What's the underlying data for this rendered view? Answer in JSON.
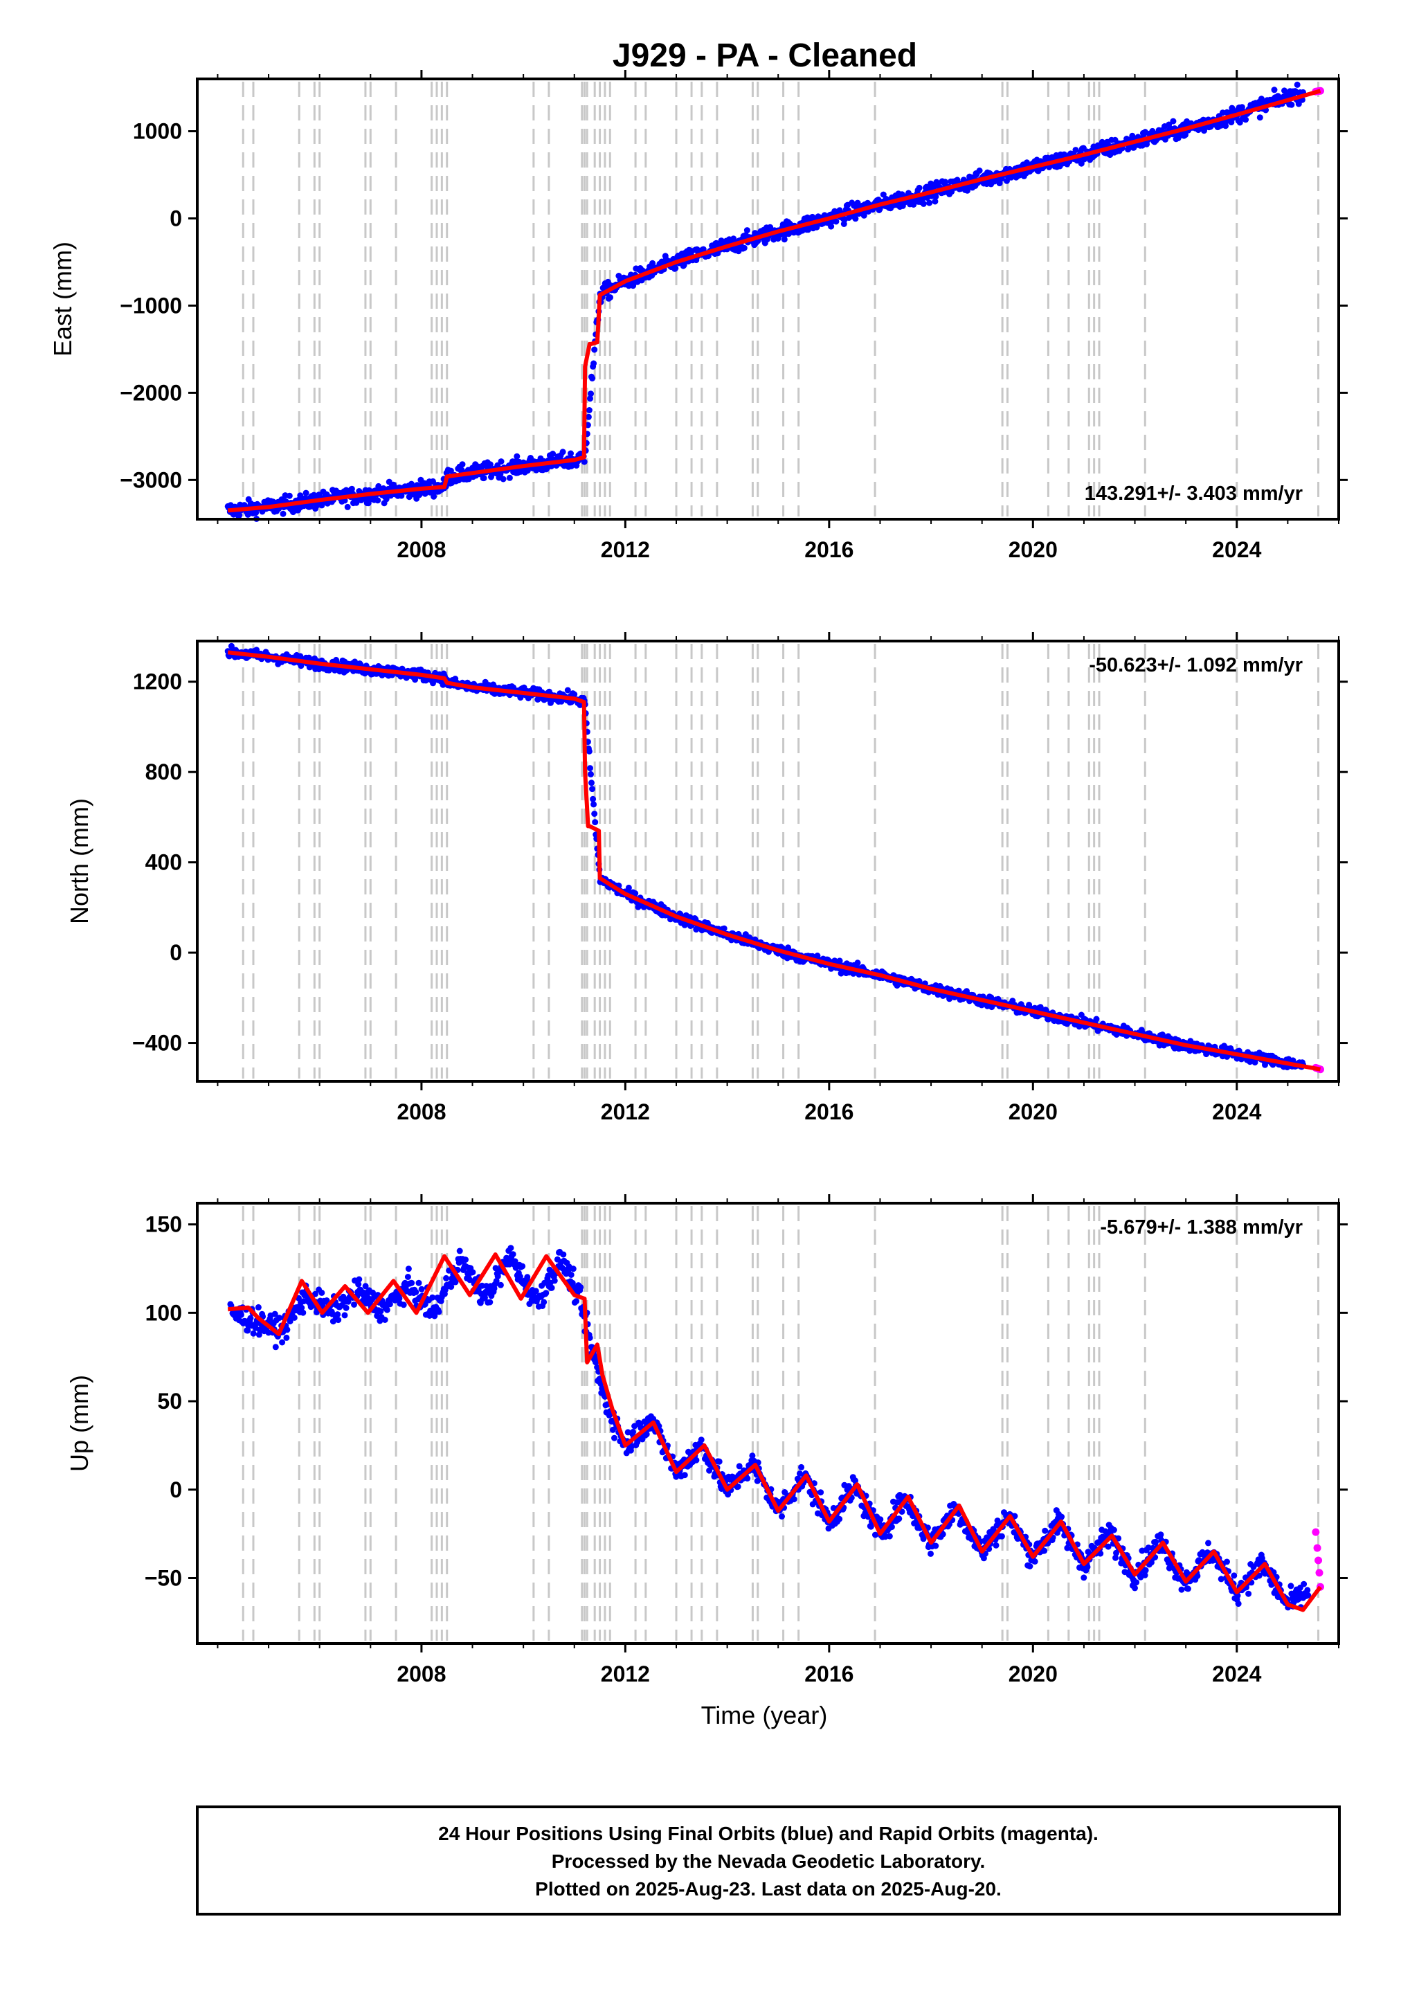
{
  "title": "J929  - PA - Cleaned",
  "xlabel": "Time (year)",
  "footer": {
    "line1": "24 Hour Positions Using Final Orbits (blue) and Rapid Orbits (magenta).",
    "line2": "Processed by the Nevada Geodetic Laboratory.",
    "line3": "Plotted on 2025-Aug-23. Last data on 2025-Aug-20."
  },
  "colors": {
    "final_orbits": "#0000ff",
    "rapid_orbits": "#ff00ff",
    "model_fit": "#ff0000",
    "event_lines": "#c8c8c8"
  },
  "chart_data": [
    {
      "type": "scatter",
      "ylabel": "East (mm)",
      "rate_text": "143.291+/- 3.403 mm/yr",
      "xlim": [
        2003.6,
        2026.0
      ],
      "ylim": [
        -3450,
        1600
      ],
      "xticks": [
        2008,
        2012,
        2016,
        2020,
        2024
      ],
      "yticks": [
        1000,
        0,
        -1000,
        -2000,
        -3000
      ],
      "ytick_labels": [
        "1000",
        "0",
        "−1000",
        "−2000",
        "−3000"
      ],
      "series": [
        {
          "name": "final orbits",
          "x": [
            2004.2,
            2005.0,
            2006.0,
            2007.0,
            2008.0,
            2008.45,
            2008.5,
            2009.0,
            2010.0,
            2011.0,
            2011.2,
            2011.5,
            2012.0,
            2013.0,
            2014.0,
            2015.0,
            2016.0,
            2017.0,
            2018.0,
            2019.0,
            2020.0,
            2021.0,
            2022.0,
            2023.0,
            2024.0,
            2025.3
          ],
          "values": [
            -3350,
            -3310,
            -3230,
            -3160,
            -3100,
            -3080,
            -2960,
            -2920,
            -2840,
            -2770,
            -2740,
            -880,
            -720,
            -500,
            -320,
            -150,
            0,
            160,
            300,
            450,
            590,
            730,
            880,
            1030,
            1190,
            1450
          ]
        },
        {
          "name": "rapid orbits",
          "x": [
            2025.55,
            2025.58,
            2025.61,
            2025.64
          ],
          "values": [
            1455,
            1458,
            1461,
            1463
          ]
        }
      ],
      "model": {
        "x": [
          2004.2,
          2005.0,
          2006.0,
          2007.0,
          2008.0,
          2008.45,
          2008.5,
          2009.0,
          2010.0,
          2011.0,
          2011.19,
          2011.21,
          2011.3,
          2011.33,
          2011.45,
          2011.5,
          2012.0,
          2013.0,
          2014.0,
          2015.0,
          2016.0,
          2017.0,
          2018.0,
          2019.0,
          2020.0,
          2021.0,
          2022.0,
          2023.0,
          2024.0,
          2025.64
        ],
        "values": [
          -3350,
          -3310,
          -3230,
          -3160,
          -3100,
          -3080,
          -2960,
          -2920,
          -2840,
          -2770,
          -2740,
          -1700,
          -1440,
          -1440,
          -1420,
          -880,
          -720,
          -500,
          -320,
          -150,
          0,
          160,
          300,
          450,
          590,
          730,
          880,
          1030,
          1190,
          1463
        ]
      }
    },
    {
      "type": "scatter",
      "ylabel": "North (mm)",
      "rate_text": "-50.623+/- 1.092 mm/yr",
      "xlim": [
        2003.6,
        2026.0
      ],
      "ylim": [
        -570,
        1380
      ],
      "xticks": [
        2008,
        2012,
        2016,
        2020,
        2024
      ],
      "yticks": [
        1200,
        800,
        400,
        0,
        -400
      ],
      "ytick_labels": [
        "1200",
        "800",
        "400",
        "0",
        "−400"
      ],
      "series": [
        {
          "name": "final orbits",
          "x": [
            2004.2,
            2005.0,
            2006.0,
            2007.0,
            2008.0,
            2008.45,
            2008.5,
            2009.0,
            2010.0,
            2011.0,
            2011.2,
            2011.5,
            2012.0,
            2013.0,
            2014.0,
            2015.0,
            2016.0,
            2017.0,
            2018.0,
            2019.0,
            2020.0,
            2021.0,
            2022.0,
            2023.0,
            2024.0,
            2025.3
          ],
          "values": [
            1330,
            1310,
            1280,
            1255,
            1230,
            1215,
            1195,
            1175,
            1150,
            1125,
            1110,
            330,
            260,
            160,
            80,
            10,
            -50,
            -100,
            -160,
            -210,
            -260,
            -310,
            -360,
            -410,
            -450,
            -500
          ]
        },
        {
          "name": "rapid orbits",
          "x": [
            2025.55,
            2025.58,
            2025.61,
            2025.64
          ],
          "values": [
            -510,
            -512,
            -515,
            -517
          ]
        }
      ],
      "model": {
        "x": [
          2004.2,
          2005.0,
          2006.0,
          2007.0,
          2008.0,
          2008.45,
          2008.5,
          2009.0,
          2010.0,
          2011.0,
          2011.19,
          2011.21,
          2011.27,
          2011.3,
          2011.48,
          2011.5,
          2012.0,
          2013.0,
          2014.0,
          2015.0,
          2016.0,
          2017.0,
          2018.0,
          2019.0,
          2020.0,
          2021.0,
          2022.0,
          2023.0,
          2024.0,
          2025.64
        ],
        "values": [
          1330,
          1310,
          1280,
          1255,
          1230,
          1215,
          1195,
          1175,
          1150,
          1125,
          1110,
          800,
          560,
          560,
          540,
          330,
          260,
          160,
          80,
          10,
          -50,
          -100,
          -160,
          -210,
          -260,
          -310,
          -360,
          -410,
          -450,
          -517
        ]
      }
    },
    {
      "type": "scatter",
      "ylabel": "Up (mm)",
      "rate_text": "-5.679+/- 1.388 mm/yr",
      "xlim": [
        2003.6,
        2026.0
      ],
      "ylim": [
        -87,
        162
      ],
      "xticks": [
        2008,
        2012,
        2016,
        2020,
        2024
      ],
      "yticks": [
        150,
        100,
        50,
        0,
        -50
      ],
      "ytick_labels": [
        "150",
        "100",
        "50",
        "0",
        "−50"
      ],
      "series": [
        {
          "name": "final orbits",
          "x": [
            2004.25,
            2004.75,
            2005.25,
            2005.75,
            2006.25,
            2006.75,
            2007.25,
            2007.75,
            2008.25,
            2008.75,
            2009.25,
            2009.75,
            2010.25,
            2010.75,
            2011.1,
            2011.6,
            2012.0,
            2012.5,
            2013.0,
            2013.5,
            2014.0,
            2014.5,
            2015.0,
            2015.5,
            2016.0,
            2016.5,
            2017.0,
            2017.5,
            2018.0,
            2018.5,
            2019.0,
            2019.5,
            2020.0,
            2020.5,
            2021.0,
            2021.5,
            2022.0,
            2022.5,
            2023.0,
            2023.5,
            2024.0,
            2024.5,
            2025.0,
            2025.4
          ],
          "values": [
            100,
            95,
            90,
            110,
            100,
            112,
            102,
            115,
            100,
            130,
            108,
            132,
            106,
            130,
            108,
            50,
            25,
            40,
            10,
            25,
            0,
            15,
            -12,
            8,
            -18,
            2,
            -25,
            -5,
            -30,
            -10,
            -35,
            -15,
            -38,
            -18,
            -42,
            -25,
            -48,
            -30,
            -52,
            -35,
            -58,
            -42,
            -65,
            -58
          ]
        },
        {
          "name": "rapid orbits",
          "x": [
            2025.55,
            2025.58,
            2025.6,
            2025.62,
            2025.64
          ],
          "values": [
            -24,
            -33,
            -40,
            -47,
            -55
          ]
        }
      ],
      "model": {
        "x": [
          2004.2,
          2004.6,
          2004.8,
          2005.2,
          2005.65,
          2006.05,
          2006.5,
          2006.95,
          2007.45,
          2007.9,
          2008.45,
          2008.95,
          2009.45,
          2009.95,
          2010.45,
          2011.0,
          2011.2,
          2011.25,
          2011.45,
          2011.55,
          2011.75,
          2012.0,
          2012.55,
          2013.0,
          2013.55,
          2014.0,
          2014.55,
          2015.0,
          2015.55,
          2016.0,
          2016.55,
          2017.0,
          2017.55,
          2018.0,
          2018.55,
          2019.0,
          2019.55,
          2020.0,
          2020.55,
          2021.0,
          2021.55,
          2022.0,
          2022.55,
          2023.0,
          2023.55,
          2024.0,
          2024.55,
          2025.0,
          2025.3,
          2025.64
        ],
        "values": [
          102,
          103,
          97,
          88,
          118,
          100,
          115,
          100,
          118,
          100,
          132,
          110,
          133,
          108,
          132,
          110,
          108,
          72,
          82,
          65,
          45,
          25,
          38,
          10,
          25,
          0,
          14,
          -12,
          8,
          -18,
          3,
          -25,
          -4,
          -30,
          -9,
          -35,
          -15,
          -38,
          -18,
          -42,
          -26,
          -48,
          -30,
          -52,
          -35,
          -58,
          -42,
          -65,
          -68,
          -55
        ]
      }
    }
  ],
  "event_lines": [
    2004.5,
    2004.7,
    2005.6,
    2005.9,
    2006.0,
    2006.9,
    2007.0,
    2007.5,
    2008.2,
    2008.3,
    2008.4,
    2008.5,
    2010.2,
    2010.5,
    2011.15,
    2011.2,
    2011.25,
    2011.4,
    2011.5,
    2011.6,
    2011.7,
    2012.2,
    2012.4,
    2013.0,
    2013.3,
    2013.5,
    2013.8,
    2014.5,
    2014.6,
    2015.1,
    2015.4,
    2016.9,
    2019.4,
    2019.5,
    2020.3,
    2020.7,
    2021.1,
    2021.2,
    2021.3,
    2022.2,
    2024.0,
    2025.6
  ]
}
